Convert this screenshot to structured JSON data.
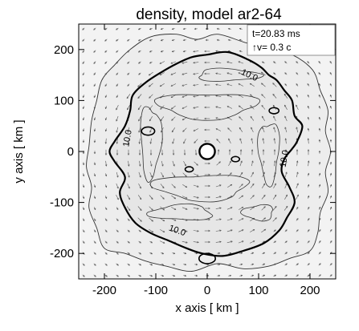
{
  "colors": {
    "background": "#ffffff",
    "plot_fill": "#f3f3f3",
    "inner_fill": "#e6e6e6",
    "contour": "#000000",
    "thin_contour": "#333333",
    "vector": "#555555"
  },
  "chart_data": {
    "type": "contour",
    "title": "density, model ar2-64",
    "xlabel": "x axis [ km ]",
    "ylabel": "y axis [ km ]",
    "xlim": [
      -250,
      250
    ],
    "ylim": [
      -250,
      250
    ],
    "xticks": [
      -200,
      -100,
      0,
      100,
      200
    ],
    "yticks": [
      -200,
      -100,
      0,
      100,
      200
    ],
    "xtick_labels": [
      "-200",
      "-100",
      "0",
      "100",
      "200"
    ],
    "ytick_labels": [
      "-200",
      "-100",
      "0",
      "100",
      "200"
    ],
    "legend": {
      "time_label": "t=20.83 ms",
      "vector_label": "↑v=  0.3 c"
    },
    "contour_labels": [
      {
        "text": "10.0",
        "x": 80,
        "y": 145,
        "angle": 25
      },
      {
        "text": "10.0",
        "x": -150,
        "y": 25,
        "angle": -80
      },
      {
        "text": "10.0",
        "x": 155,
        "y": -15,
        "angle": -80
      },
      {
        "text": "10.0",
        "x": -60,
        "y": -160,
        "angle": 20
      }
    ],
    "vector_field": {
      "type": "rotational",
      "sense": "counter-clockwise"
    },
    "bold_contour_points": [
      [
        -30,
        185
      ],
      [
        0,
        190
      ],
      [
        40,
        195
      ],
      [
        80,
        180
      ],
      [
        105,
        165
      ],
      [
        120,
        150
      ],
      [
        135,
        140
      ],
      [
        150,
        120
      ],
      [
        165,
        100
      ],
      [
        170,
        70
      ],
      [
        185,
        50
      ],
      [
        175,
        20
      ],
      [
        165,
        5
      ],
      [
        150,
        -15
      ],
      [
        145,
        -40
      ],
      [
        160,
        -70
      ],
      [
        170,
        -100
      ],
      [
        155,
        -130
      ],
      [
        140,
        -155
      ],
      [
        110,
        -180
      ],
      [
        70,
        -195
      ],
      [
        30,
        -205
      ],
      [
        -10,
        -200
      ],
      [
        -40,
        -190
      ],
      [
        -75,
        -175
      ],
      [
        -110,
        -160
      ],
      [
        -140,
        -140
      ],
      [
        -160,
        -110
      ],
      [
        -170,
        -80
      ],
      [
        -160,
        -50
      ],
      [
        -180,
        -20
      ],
      [
        -190,
        0
      ],
      [
        -180,
        20
      ],
      [
        -160,
        50
      ],
      [
        -150,
        80
      ],
      [
        -145,
        110
      ],
      [
        -120,
        135
      ],
      [
        -90,
        155
      ],
      [
        -60,
        172
      ]
    ],
    "outer_contour_points": [
      [
        -110,
        225
      ],
      [
        -60,
        230
      ],
      [
        -20,
        220
      ],
      [
        20,
        230
      ],
      [
        70,
        215
      ],
      [
        120,
        200
      ],
      [
        165,
        190
      ],
      [
        205,
        160
      ],
      [
        220,
        120
      ],
      [
        235,
        80
      ],
      [
        230,
        40
      ],
      [
        240,
        0
      ],
      [
        230,
        -40
      ],
      [
        235,
        -80
      ],
      [
        220,
        -120
      ],
      [
        215,
        -160
      ],
      [
        200,
        -195
      ],
      [
        160,
        -210
      ],
      [
        120,
        -225
      ],
      [
        70,
        -230
      ],
      [
        20,
        -220
      ],
      [
        -30,
        -235
      ],
      [
        -80,
        -225
      ],
      [
        -120,
        -215
      ],
      [
        -160,
        -200
      ],
      [
        -200,
        -190
      ],
      [
        -215,
        -150
      ],
      [
        -230,
        -110
      ],
      [
        -225,
        -70
      ],
      [
        -235,
        -30
      ],
      [
        -230,
        10
      ],
      [
        -225,
        60
      ],
      [
        -215,
        100
      ],
      [
        -205,
        140
      ],
      [
        -180,
        170
      ],
      [
        -150,
        200
      ]
    ]
  }
}
